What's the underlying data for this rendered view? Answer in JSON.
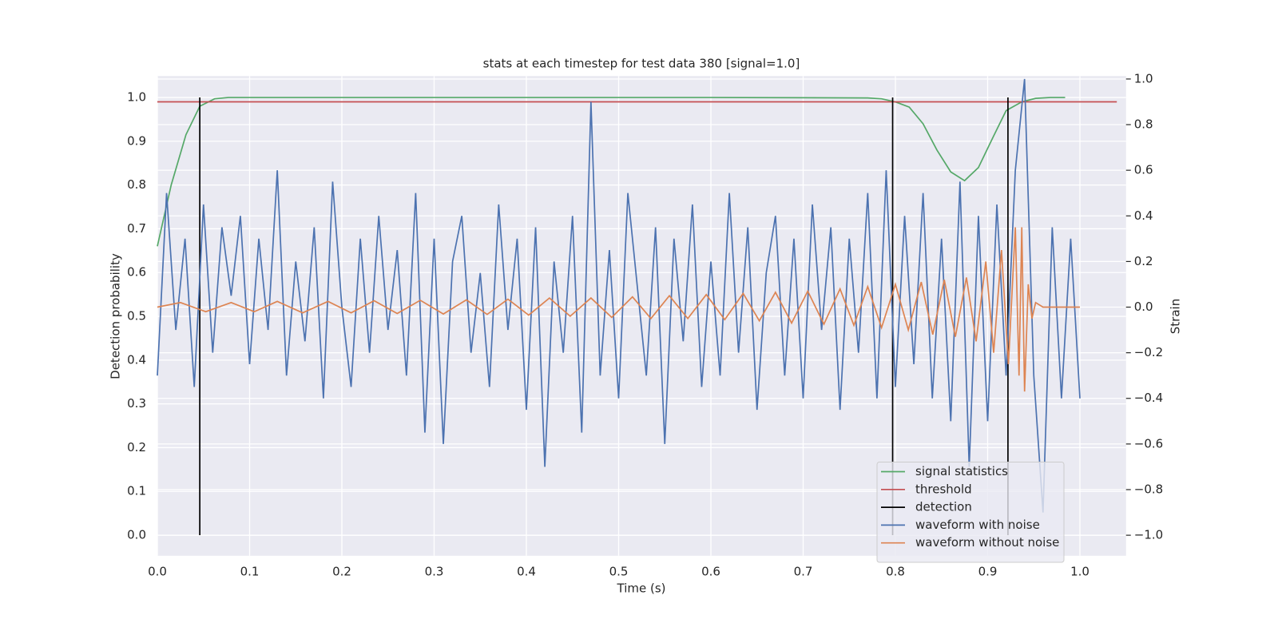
{
  "chart_data": {
    "type": "line",
    "title": "stats at each timestep for test data 380 [signal=1.0]",
    "xlabel": "Time (s)",
    "ylabel": "Detection probability",
    "y2label": "Strain",
    "xlim": [
      0,
      1.05
    ],
    "ylim": [
      -0.047,
      1.049
    ],
    "y2lim": [
      -1.09,
      1.013
    ],
    "xticks": [
      {
        "value": 0,
        "label": "0.0"
      },
      0.1,
      0.2,
      0.3,
      0.4,
      0.5,
      0.6,
      0.7,
      0.8,
      0.9,
      {
        "value": 1,
        "label": "1.0"
      }
    ],
    "yticks": [
      {
        "value": 0,
        "label": "0.0"
      },
      0.1,
      0.2,
      0.3,
      0.4,
      0.5,
      0.6,
      0.7,
      0.8,
      0.9,
      {
        "value": 1,
        "label": "1.0"
      }
    ],
    "y2ticks": [
      {
        "value": -1,
        "label": "−1.0"
      },
      {
        "value": -0.8,
        "label": "−0.8"
      },
      {
        "value": -0.6,
        "label": "−0.6"
      },
      {
        "value": -0.4,
        "label": "−0.4"
      },
      {
        "value": -0.2,
        "label": "−0.2"
      },
      {
        "value": 0,
        "label": "0.0"
      },
      0.2,
      0.4,
      0.6,
      0.8,
      {
        "value": 1,
        "label": "1.0"
      }
    ],
    "grid": true,
    "legend": "lower right",
    "series": [
      {
        "name": "signal statistics",
        "color": "#55a868",
        "kind": "line",
        "axis": "y",
        "x": [
          0,
          0.015,
          0.031,
          0.046,
          0.062,
          0.077,
          0.2,
          0.4,
          0.6,
          0.77,
          0.785,
          0.8,
          0.815,
          0.83,
          0.845,
          0.86,
          0.875,
          0.89,
          0.906,
          0.92,
          0.937,
          0.952,
          0.968,
          0.984
        ],
        "values": [
          0.66,
          0.8,
          0.915,
          0.98,
          0.997,
          1.0,
          1.0,
          1.0,
          1.0,
          0.999,
          0.997,
          0.99,
          0.978,
          0.94,
          0.88,
          0.83,
          0.81,
          0.84,
          0.91,
          0.97,
          0.99,
          0.998,
          1.0,
          1.0
        ]
      },
      {
        "name": "threshold",
        "color": "#c44e52",
        "kind": "line",
        "axis": "y",
        "x": [
          0,
          1.04
        ],
        "values": [
          0.99,
          0.99
        ]
      },
      {
        "name": "detection",
        "color": "#000000",
        "kind": "vlines",
        "axis": "y",
        "x": [
          0.046,
          0.797,
          0.922
        ],
        "ymin": 0,
        "ymax": 1
      },
      {
        "name": "waveform with noise",
        "color": "#4c72b0",
        "kind": "line",
        "axis": "y2",
        "x": [
          0,
          0.01,
          0.02,
          0.03,
          0.04,
          0.05,
          0.06,
          0.07,
          0.08,
          0.09,
          0.1,
          0.11,
          0.12,
          0.13,
          0.14,
          0.15,
          0.16,
          0.17,
          0.18,
          0.19,
          0.2,
          0.21,
          0.22,
          0.23,
          0.24,
          0.25,
          0.26,
          0.27,
          0.28,
          0.29,
          0.3,
          0.31,
          0.32,
          0.33,
          0.34,
          0.35,
          0.36,
          0.37,
          0.38,
          0.39,
          0.4,
          0.41,
          0.42,
          0.43,
          0.44,
          0.45,
          0.46,
          0.47,
          0.48,
          0.49,
          0.5,
          0.51,
          0.52,
          0.53,
          0.54,
          0.55,
          0.56,
          0.57,
          0.58,
          0.59,
          0.6,
          0.61,
          0.62,
          0.63,
          0.64,
          0.65,
          0.66,
          0.67,
          0.68,
          0.69,
          0.7,
          0.71,
          0.72,
          0.73,
          0.74,
          0.75,
          0.76,
          0.77,
          0.78,
          0.79,
          0.8,
          0.81,
          0.82,
          0.83,
          0.84,
          0.85,
          0.86,
          0.87,
          0.88,
          0.89,
          0.9,
          0.91,
          0.92,
          0.93,
          0.94,
          0.95,
          0.96,
          0.97,
          0.98,
          0.99,
          1.0
        ],
        "values": [
          -0.3,
          0.5,
          -0.1,
          0.3,
          -0.35,
          0.45,
          -0.2,
          0.35,
          0.05,
          0.4,
          -0.25,
          0.3,
          -0.1,
          0.6,
          -0.3,
          0.2,
          -0.15,
          0.35,
          -0.4,
          0.55,
          0.0,
          -0.35,
          0.3,
          -0.2,
          0.4,
          -0.1,
          0.25,
          -0.3,
          0.5,
          -0.55,
          0.3,
          -0.6,
          0.2,
          0.4,
          -0.2,
          0.15,
          -0.35,
          0.45,
          -0.1,
          0.3,
          -0.45,
          0.35,
          -0.7,
          0.2,
          -0.2,
          0.4,
          -0.55,
          0.9,
          -0.3,
          0.25,
          -0.4,
          0.5,
          0.1,
          -0.3,
          0.35,
          -0.6,
          0.3,
          -0.15,
          0.45,
          -0.35,
          0.2,
          -0.3,
          0.5,
          -0.2,
          0.35,
          -0.45,
          0.15,
          0.4,
          -0.3,
          0.3,
          -0.4,
          0.45,
          -0.1,
          0.35,
          -0.45,
          0.3,
          -0.2,
          0.5,
          -0.4,
          0.6,
          -0.35,
          0.4,
          -0.25,
          0.5,
          -0.4,
          0.3,
          -0.5,
          0.55,
          -0.7,
          0.4,
          -0.5,
          0.45,
          -0.3,
          0.6,
          1.0,
          -0.3,
          -0.9,
          0.35,
          -0.4,
          0.3,
          -0.4
        ]
      },
      {
        "name": "waveform without noise",
        "color": "#dd8452",
        "kind": "line",
        "axis": "y2",
        "x": [
          0,
          0.025,
          0.0525,
          0.08,
          0.105,
          0.13,
          0.1575,
          0.185,
          0.21,
          0.235,
          0.26,
          0.285,
          0.31,
          0.335,
          0.3575,
          0.38,
          0.4025,
          0.425,
          0.4475,
          0.47,
          0.4925,
          0.515,
          0.535,
          0.555,
          0.575,
          0.595,
          0.615,
          0.635,
          0.6525,
          0.67,
          0.6875,
          0.705,
          0.7225,
          0.74,
          0.755,
          0.77,
          0.785,
          0.8,
          0.814,
          0.828,
          0.8405,
          0.853,
          0.865,
          0.877,
          0.8875,
          0.898,
          0.9065,
          0.915,
          0.9225,
          0.93,
          0.934,
          0.937,
          0.94,
          0.944,
          0.948,
          0.952,
          0.96,
          1.0
        ],
        "values": [
          0,
          0.02,
          -0.02,
          0.02,
          -0.02,
          0.025,
          -0.025,
          0.025,
          -0.025,
          0.028,
          -0.028,
          0.03,
          -0.03,
          0.032,
          -0.032,
          0.035,
          -0.035,
          0.04,
          -0.04,
          0.04,
          -0.045,
          0.045,
          -0.05,
          0.05,
          -0.05,
          0.055,
          -0.055,
          0.06,
          -0.06,
          0.065,
          -0.07,
          0.07,
          -0.075,
          0.08,
          -0.08,
          0.09,
          -0.09,
          0.1,
          -0.1,
          0.11,
          -0.12,
          0.12,
          -0.13,
          0.13,
          -0.15,
          0.2,
          -0.2,
          0.25,
          -0.25,
          0.35,
          -0.3,
          0.35,
          -0.37,
          0.1,
          -0.05,
          0.02,
          0,
          0
        ]
      }
    ]
  }
}
